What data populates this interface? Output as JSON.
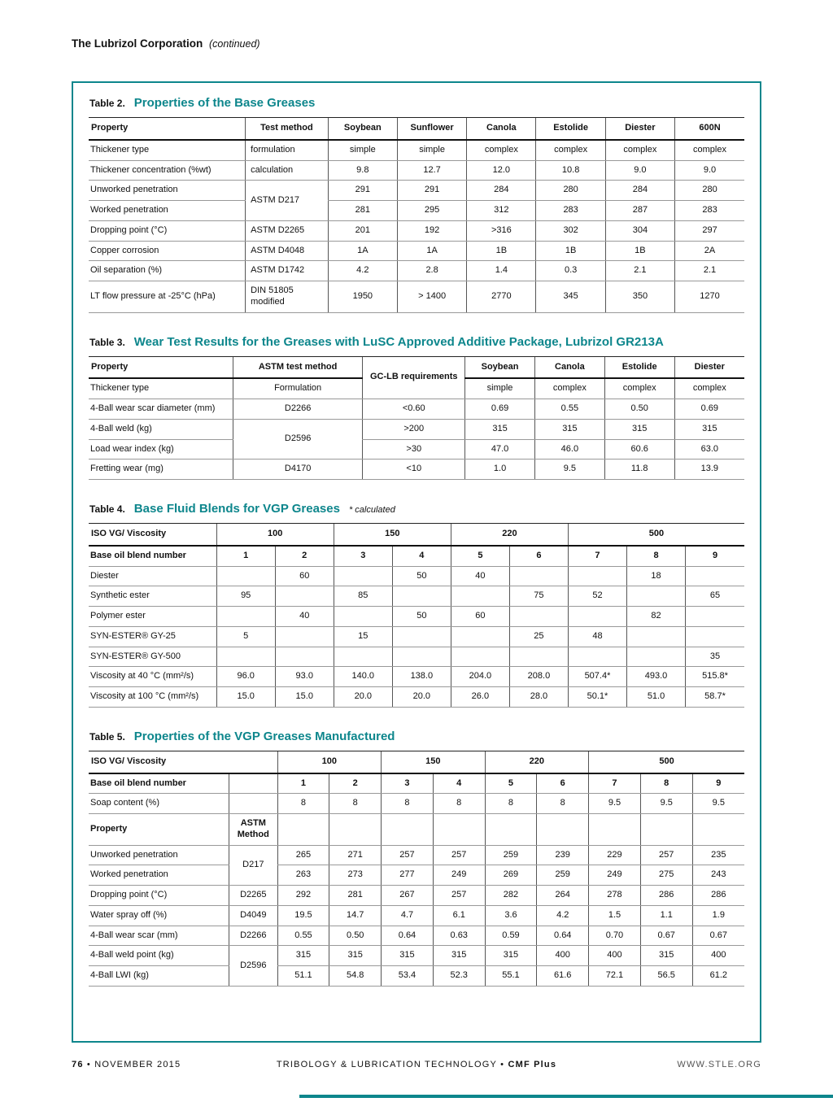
{
  "colors": {
    "teal": "#0d868c"
  },
  "page": {
    "header": {
      "title": "The Lubrizol Corporation",
      "continued": "(continued)"
    },
    "footer": {
      "page_number": "76",
      "bullet": "•",
      "issue": "NOVEMBER 2015",
      "journal": "TRIBOLOGY & LUBRICATION TECHNOLOGY",
      "brand": "CMF Plus",
      "website": "WWW.STLE.ORG"
    }
  },
  "tables": [
    {
      "label": "Table 2.",
      "title": "Properties of the Base Greases",
      "widths": [
        "23.9%",
        "12.6%",
        "10.58%",
        "10.58%",
        "10.58%",
        "10.58%",
        "10.58%",
        "10.6%"
      ],
      "head": [
        {
          "cls": "hmain",
          "cells": [
            {
              "t": "Property"
            },
            {
              "t": "Test method"
            },
            {
              "t": "Soybean"
            },
            {
              "t": "Sunflower"
            },
            {
              "t": "Canola"
            },
            {
              "t": "Estolide"
            },
            {
              "t": "Diester"
            },
            {
              "t": "600N"
            }
          ]
        }
      ],
      "body": [
        [
          "Thickener type",
          {
            "t": "formulation",
            "cls": "left"
          },
          "simple",
          "simple",
          "complex",
          "complex",
          "complex",
          "complex"
        ],
        [
          "Thickener concentration (%wt)",
          {
            "t": "calculation",
            "cls": "left"
          },
          "9.8",
          "12.7",
          "12.0",
          "10.8",
          "9.0",
          "9.0"
        ],
        [
          {
            "t": "Unworked penetration"
          },
          {
            "t": "ASTM D217",
            "rs": 2,
            "cls": "left"
          },
          "291",
          "291",
          "284",
          "280",
          "284",
          "280"
        ],
        [
          "Worked penetration",
          "281",
          "295",
          "312",
          "283",
          "287",
          "283"
        ],
        [
          "Dropping point (°C)",
          {
            "t": "ASTM D2265",
            "cls": "left"
          },
          "201",
          "192",
          ">316",
          "302",
          "304",
          "297"
        ],
        [
          "Copper corrosion",
          {
            "t": "ASTM D4048",
            "cls": "left"
          },
          "1A",
          "1A",
          "1B",
          "1B",
          "1B",
          "2A"
        ],
        [
          "Oil separation (%)",
          {
            "t": "ASTM D1742",
            "cls": "left"
          },
          "4.2",
          "2.8",
          "1.4",
          "0.3",
          "2.1",
          "2.1"
        ],
        [
          "LT flow pressure at -25°C (hPa)",
          {
            "t": "DIN 51805 modified",
            "cls": "left"
          },
          "1950",
          "> 1400",
          "2770",
          "345",
          "350",
          "1270"
        ]
      ]
    },
    {
      "label": "Table 3.",
      "title": "Wear Test Results for the Greases with LuSC Approved Additive Package, Lubrizol GR213A",
      "widths": [
        "22%",
        "19.8%",
        "15.6%",
        "10.65%",
        "10.65%",
        "10.65%",
        "10.65%"
      ],
      "head": [
        {
          "cls": "hmain",
          "cells": [
            {
              "t": "Property"
            },
            {
              "t": "ASTM test method"
            },
            {
              "t": "GC-LB requirements",
              "rs": 2,
              "cls": "thinb"
            },
            {
              "t": "Soybean"
            },
            {
              "t": "Canola"
            },
            {
              "t": "Estolide"
            },
            {
              "t": "Diester"
            }
          ]
        },
        {
          "cls": "hsub",
          "cells": [
            {
              "t": "Thickener type"
            },
            {
              "t": "Formulation"
            },
            {
              "t": "simple"
            },
            {
              "t": "complex"
            },
            {
              "t": "complex"
            },
            {
              "t": "complex"
            }
          ]
        }
      ],
      "body": [
        [
          "4-Ball wear scar diameter (mm)",
          "D2266",
          "<0.60",
          "0.69",
          "0.55",
          "0.50",
          "0.69"
        ],
        [
          {
            "t": "4-Ball weld (kg)"
          },
          {
            "t": "D2596",
            "rs": 2
          },
          ">200",
          "315",
          "315",
          "315",
          "315"
        ],
        [
          "Load wear index (kg)",
          ">30",
          "47.0",
          "46.0",
          "60.6",
          "63.0"
        ],
        [
          "Fretting wear (mg)",
          "D4170",
          "<10",
          "1.0",
          "9.5",
          "11.8",
          "13.9"
        ]
      ]
    },
    {
      "label": "Table 4.",
      "title": "Base Fluid Blends for VGP Greases",
      "note": "* calculated",
      "widths": [
        "19.5%",
        "8.94%",
        "8.94%",
        "8.94%",
        "8.94%",
        "8.94%",
        "8.94%",
        "8.94%",
        "8.94%",
        "8.98%"
      ],
      "head": [
        {
          "cls": "hmain",
          "cells": [
            {
              "t": "ISO VG/ Viscosity"
            },
            {
              "t": "100",
              "cs": 2
            },
            {
              "t": "150",
              "cs": 2
            },
            {
              "t": "220",
              "cs": 2
            },
            {
              "t": "500",
              "cs": 3
            }
          ]
        }
      ],
      "body": [
        {
          "cls": "rowbold",
          "cells": [
            "Base oil blend number",
            "1",
            "2",
            "3",
            "4",
            "5",
            "6",
            "7",
            "8",
            "9"
          ]
        },
        [
          "Diester",
          "",
          "60",
          "",
          "50",
          "40",
          "",
          "",
          "18",
          ""
        ],
        [
          "Synthetic ester",
          "95",
          "",
          "85",
          "",
          "",
          "75",
          "52",
          "",
          "65"
        ],
        [
          "Polymer ester",
          "",
          "40",
          "",
          "50",
          "60",
          "",
          "",
          "82",
          ""
        ],
        [
          "SYN-ESTER® GY-25",
          "5",
          "",
          "15",
          "",
          "",
          "25",
          "48",
          "",
          ""
        ],
        [
          "SYN-ESTER® GY-500",
          "",
          "",
          "",
          "",
          "",
          "",
          "",
          "",
          "35"
        ],
        [
          "Viscosity at 40 °C (mm²/s)",
          "96.0",
          "93.0",
          "140.0",
          "138.0",
          "204.0",
          "208.0",
          "507.4*",
          "493.0",
          "515.8*"
        ],
        [
          "Viscosity at 100 °C (mm²/s)",
          "15.0",
          "15.0",
          "20.0",
          "20.0",
          "26.0",
          "28.0",
          "50.1*",
          "51.0",
          "58.7*"
        ]
      ]
    },
    {
      "label": "Table 5.",
      "title": "Properties of the VGP Greases Manufactured",
      "widths": [
        "21.4%",
        "7.4%",
        "7.91%",
        "7.91%",
        "7.91%",
        "7.91%",
        "7.91%",
        "7.91%",
        "7.91%",
        "7.91%",
        "7.92%"
      ],
      "head": [
        {
          "cls": "hmain",
          "cells": [
            {
              "t": "ISO VG/ Viscosity",
              "cs": 2
            },
            {
              "t": "100",
              "cs": 2
            },
            {
              "t": "150",
              "cs": 2
            },
            {
              "t": "220",
              "cs": 2
            },
            {
              "t": "500",
              "cs": 3
            }
          ]
        }
      ],
      "body": [
        {
          "cls": "rowbold",
          "cells": [
            "Base oil blend number",
            "",
            "1",
            "2",
            "3",
            "4",
            "5",
            "6",
            "7",
            "8",
            "9"
          ]
        },
        [
          "Soap content (%)",
          "",
          "8",
          "8",
          "8",
          "8",
          "8",
          "8",
          "9.5",
          "9.5",
          "9.5"
        ],
        {
          "cls": "subhead",
          "cells": [
            {
              "t": "Property"
            },
            {
              "t": "ASTM Method"
            },
            "",
            "",
            "",
            "",
            "",
            "",
            "",
            "",
            ""
          ]
        },
        [
          {
            "t": "Unworked penetration"
          },
          {
            "t": "D217",
            "rs": 2
          },
          "265",
          "271",
          "257",
          "257",
          "259",
          "239",
          "229",
          "257",
          "235"
        ],
        [
          "Worked penetration",
          "263",
          "273",
          "277",
          "249",
          "269",
          "259",
          "249",
          "275",
          "243"
        ],
        [
          "Dropping point (°C)",
          "D2265",
          "292",
          "281",
          "267",
          "257",
          "282",
          "264",
          "278",
          "286",
          "286"
        ],
        [
          "Water spray off (%)",
          "D4049",
          "19.5",
          "14.7",
          "4.7",
          "6.1",
          "3.6",
          "4.2",
          "1.5",
          "1.1",
          "1.9"
        ],
        [
          "4-Ball wear scar (mm)",
          "D2266",
          "0.55",
          "0.50",
          "0.64",
          "0.63",
          "0.59",
          "0.64",
          "0.70",
          "0.67",
          "0.67"
        ],
        [
          {
            "t": "4-Ball weld point (kg)"
          },
          {
            "t": "D2596",
            "rs": 2
          },
          "315",
          "315",
          "315",
          "315",
          "315",
          "400",
          "400",
          "315",
          "400"
        ],
        [
          "4-Ball LWI (kg)",
          "51.1",
          "54.8",
          "53.4",
          "52.3",
          "55.1",
          "61.6",
          "72.1",
          "56.5",
          "61.2"
        ]
      ]
    }
  ]
}
